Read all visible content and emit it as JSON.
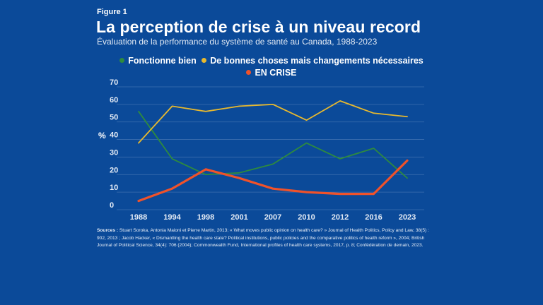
{
  "figure_label": "Figure 1",
  "title": "La perception de crise à un niveau record",
  "subtitle": "Évaluation de la performance du système de santé au Canada, 1988-2023",
  "sources_label": "Sources :",
  "sources_text": " Stuart Soroka, Antonia Maioni et Pierre Martin, 2013; « What moves public opinion on health care? » Journal of Health Politics, Policy and Law, 38(5) : 902, 2013 ; Jacob Hacker, « Dismantling the health care state? Political institutions, public policies and the comparative politics of health reform », 2004; British Journal of Political Science, 34(4): 706 (2004); Commonwealth Fund, International profiles of health care systems, 2017, p. 8; Confédération de demain, 2023.",
  "colors": {
    "background": "#0b4a99",
    "gridline": "#3d6fb0",
    "fonctionne": "#2e8b3e",
    "bonnes": "#e8b92e",
    "crise": "#f0522a"
  },
  "chart_data": {
    "type": "line",
    "title": "La perception de crise à un niveau record",
    "subtitle": "Évaluation de la performance du système de santé au Canada, 1988-2023",
    "xlabel": "",
    "ylabel": "%",
    "ylim": [
      0,
      70
    ],
    "yticks": [
      0,
      10,
      20,
      30,
      40,
      50,
      60,
      70
    ],
    "grid": true,
    "legend_position": "top-center",
    "categories": [
      "1988",
      "1994",
      "1998",
      "2001",
      "2007",
      "2010",
      "2012",
      "2016",
      "2023"
    ],
    "series": [
      {
        "name": "Fonctionne bien",
        "color": "#2e8b3e",
        "values": [
          56,
          29,
          20,
          21,
          26,
          38,
          29,
          35,
          18
        ]
      },
      {
        "name": "De bonnes choses mais changements nécessaires",
        "color": "#e8b92e",
        "values": [
          38,
          59,
          56,
          59,
          60,
          51,
          62,
          55,
          53
        ]
      },
      {
        "name": "EN CRISE",
        "color": "#f0522a",
        "values": [
          5,
          12,
          23,
          18,
          12,
          10,
          9,
          9,
          28
        ]
      }
    ]
  }
}
